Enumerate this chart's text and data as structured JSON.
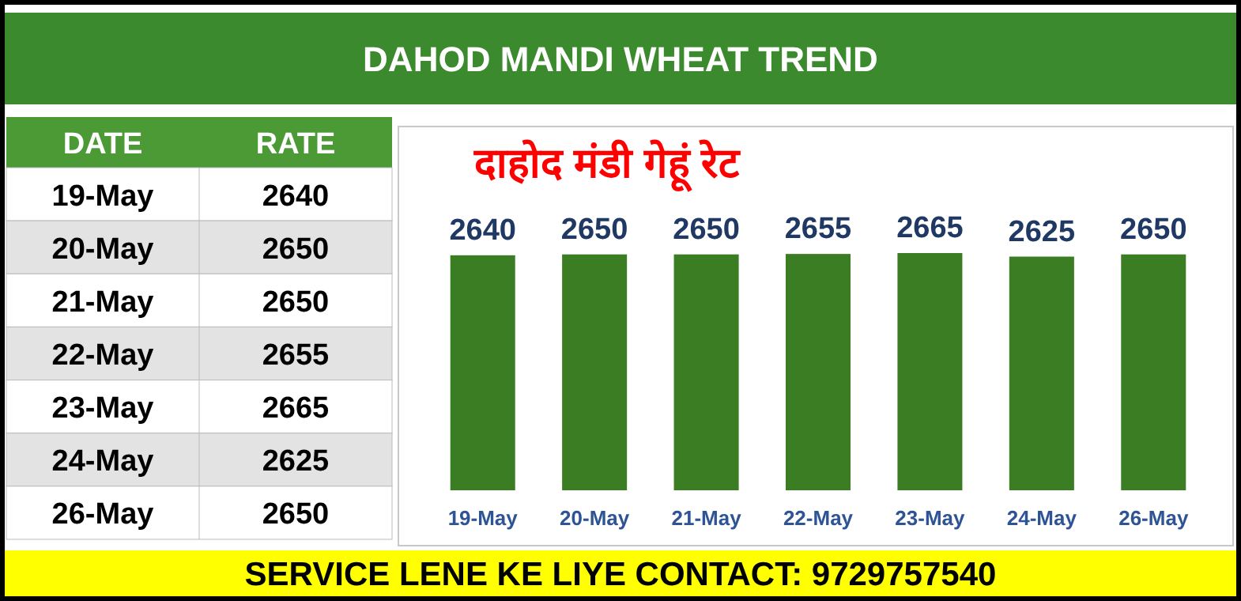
{
  "chart_data": {
    "type": "bar",
    "title": "DAHOD MANDI WHEAT TREND",
    "subtitle": "दाहोद मंडी गेहूं रेट",
    "categories": [
      "19-May",
      "20-May",
      "21-May",
      "22-May",
      "23-May",
      "24-May",
      "26-May"
    ],
    "values": [
      2640,
      2650,
      2650,
      2655,
      2665,
      2625,
      2650
    ],
    "color": "#3b7d23",
    "tick_labels": "x",
    "data_labels": true,
    "grid": false,
    "annotations": [
      "DATE",
      "RATE",
      "SERVICE LENE KE LIYE CONTACT: 9729757540",
      "2640",
      "2650",
      "2650",
      "2655",
      "2665",
      "2625",
      "2650"
    ]
  }
}
